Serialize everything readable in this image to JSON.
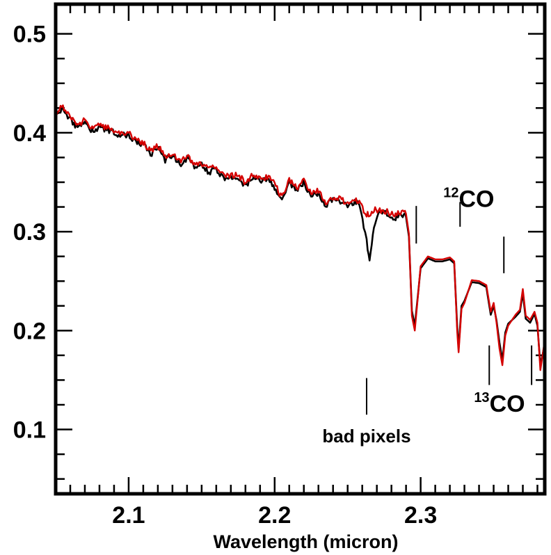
{
  "chart_data": {
    "type": "line",
    "xlabel": "Wavelength (micron)",
    "ylabel": "",
    "xlim": [
      2.05,
      2.385
    ],
    "ylim": [
      0.035,
      0.53
    ],
    "x_ticks": [
      "2.1",
      "2.2",
      "2.3"
    ],
    "y_ticks": [
      "0.1",
      "0.2",
      "0.3",
      "0.4",
      "0.5"
    ],
    "grid": false,
    "legend": "none",
    "series": [
      {
        "color": "#000000",
        "x": [
          2.05,
          2.055,
          2.06,
          2.065,
          2.07,
          2.075,
          2.08,
          2.085,
          2.09,
          2.095,
          2.1,
          2.105,
          2.11,
          2.115,
          2.12,
          2.125,
          2.13,
          2.135,
          2.14,
          2.145,
          2.15,
          2.155,
          2.16,
          2.165,
          2.17,
          2.175,
          2.18,
          2.185,
          2.19,
          2.195,
          2.2,
          2.205,
          2.21,
          2.215,
          2.22,
          2.225,
          2.23,
          2.235,
          2.24,
          2.245,
          2.25,
          2.255,
          2.258,
          2.261,
          2.263,
          2.265,
          2.268,
          2.272,
          2.277,
          2.282,
          2.287,
          2.29,
          2.292,
          2.294,
          2.296,
          2.3,
          2.305,
          2.31,
          2.315,
          2.32,
          2.323,
          2.325,
          2.326,
          2.328,
          2.33,
          2.335,
          2.34,
          2.345,
          2.348,
          2.35,
          2.352,
          2.354,
          2.356,
          2.358,
          2.36,
          2.365,
          2.368,
          2.37,
          2.372,
          2.375,
          2.378,
          2.38,
          2.382,
          2.385
        ],
        "y": [
          0.417,
          0.424,
          0.413,
          0.405,
          0.41,
          0.401,
          0.406,
          0.403,
          0.4,
          0.397,
          0.398,
          0.39,
          0.388,
          0.378,
          0.385,
          0.372,
          0.378,
          0.368,
          0.374,
          0.366,
          0.367,
          0.36,
          0.364,
          0.353,
          0.354,
          0.356,
          0.346,
          0.355,
          0.35,
          0.354,
          0.345,
          0.331,
          0.35,
          0.342,
          0.35,
          0.335,
          0.34,
          0.326,
          0.333,
          0.331,
          0.326,
          0.33,
          0.327,
          0.305,
          0.29,
          0.269,
          0.303,
          0.32,
          0.318,
          0.313,
          0.318,
          0.315,
          0.295,
          0.22,
          0.205,
          0.263,
          0.273,
          0.27,
          0.27,
          0.272,
          0.268,
          0.205,
          0.182,
          0.225,
          0.23,
          0.249,
          0.248,
          0.244,
          0.216,
          0.225,
          0.21,
          0.188,
          0.17,
          0.198,
          0.207,
          0.214,
          0.219,
          0.238,
          0.212,
          0.208,
          0.217,
          0.205,
          0.165,
          0.186
        ]
      },
      {
        "color": "#d40000",
        "x": [
          2.05,
          2.055,
          2.06,
          2.065,
          2.07,
          2.075,
          2.08,
          2.085,
          2.09,
          2.095,
          2.1,
          2.105,
          2.11,
          2.115,
          2.12,
          2.125,
          2.13,
          2.135,
          2.14,
          2.145,
          2.15,
          2.155,
          2.16,
          2.165,
          2.17,
          2.175,
          2.18,
          2.185,
          2.19,
          2.195,
          2.2,
          2.205,
          2.21,
          2.215,
          2.22,
          2.225,
          2.23,
          2.235,
          2.24,
          2.245,
          2.25,
          2.255,
          2.258,
          2.261,
          2.263,
          2.265,
          2.268,
          2.272,
          2.277,
          2.282,
          2.287,
          2.29,
          2.292,
          2.294,
          2.296,
          2.3,
          2.305,
          2.31,
          2.315,
          2.32,
          2.323,
          2.325,
          2.326,
          2.328,
          2.33,
          2.335,
          2.34,
          2.345,
          2.348,
          2.35,
          2.352,
          2.354,
          2.356,
          2.358,
          2.36,
          2.365,
          2.368,
          2.37,
          2.372,
          2.375,
          2.378,
          2.38,
          2.382,
          2.385
        ],
        "y": [
          0.42,
          0.427,
          0.416,
          0.408,
          0.413,
          0.404,
          0.409,
          0.405,
          0.402,
          0.399,
          0.4,
          0.392,
          0.39,
          0.381,
          0.387,
          0.375,
          0.38,
          0.371,
          0.376,
          0.369,
          0.369,
          0.363,
          0.366,
          0.356,
          0.357,
          0.358,
          0.349,
          0.357,
          0.353,
          0.356,
          0.348,
          0.334,
          0.352,
          0.344,
          0.352,
          0.338,
          0.342,
          0.329,
          0.335,
          0.333,
          0.329,
          0.332,
          0.33,
          0.322,
          0.318,
          0.318,
          0.322,
          0.322,
          0.32,
          0.316,
          0.32,
          0.318,
          0.298,
          0.215,
          0.2,
          0.265,
          0.275,
          0.272,
          0.272,
          0.274,
          0.27,
          0.2,
          0.178,
          0.222,
          0.228,
          0.251,
          0.25,
          0.246,
          0.219,
          0.228,
          0.208,
          0.182,
          0.165,
          0.195,
          0.205,
          0.216,
          0.221,
          0.242,
          0.215,
          0.211,
          0.219,
          0.208,
          0.16,
          0.19
        ]
      }
    ],
    "annotations": [
      {
        "text": "CO",
        "superscript": "12",
        "x": 2.333,
        "y": 0.325,
        "mark_x": 2.327,
        "mark_range": [
          0.305,
          0.33
        ],
        "align": "above"
      },
      {
        "text": "CO",
        "superscript": "13",
        "x": 2.354,
        "y": 0.118,
        "mark_x": 2.347,
        "mark_range": [
          0.145,
          0.185
        ],
        "align": "below"
      },
      {
        "text": "bad pixels",
        "superscript": "",
        "x": 2.263,
        "y": 0.087,
        "mark_x": 2.263,
        "mark_range": [
          0.115,
          0.152
        ],
        "align": "below"
      }
    ],
    "extra_marks": [
      {
        "x": 2.297,
        "range": [
          0.288,
          0.326
        ]
      },
      {
        "x": 2.357,
        "range": [
          0.258,
          0.295
        ]
      },
      {
        "x": 2.376,
        "range": [
          0.145,
          0.185
        ]
      }
    ]
  }
}
